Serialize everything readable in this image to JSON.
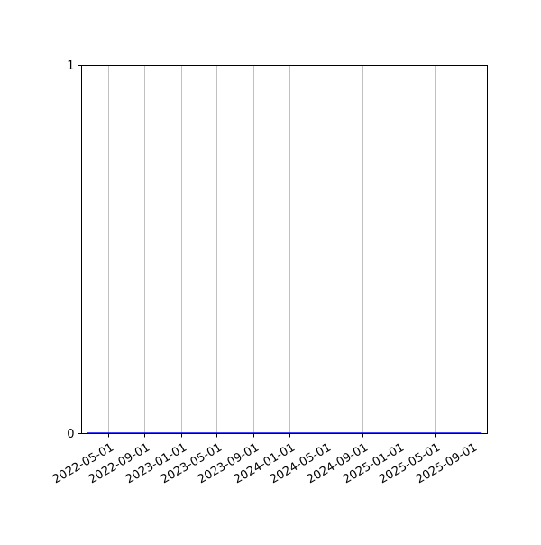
{
  "chart_data": {
    "type": "line",
    "title": "",
    "xlabel": "",
    "ylabel": "",
    "x_tick_labels": [
      "2022-05-01",
      "2022-09-01",
      "2023-01-01",
      "2023-05-01",
      "2023-09-01",
      "2024-01-01",
      "2024-05-01",
      "2024-09-01",
      "2025-01-01",
      "2025-05-01",
      "2025-09-01"
    ],
    "y_tick_labels": [
      "0",
      "1"
    ],
    "xlim": [
      "2022-02-02",
      "2025-10-25"
    ],
    "ylim": [
      0,
      1
    ],
    "grid": "x-axis vertical lines",
    "series": [
      {
        "x": [
          "2022-02-21",
          "2025-10-06"
        ],
        "y": [
          0,
          0
        ],
        "color": "#0000ff"
      }
    ],
    "colors": {
      "grid": "#b0b0b0",
      "axis": "#000000"
    }
  }
}
